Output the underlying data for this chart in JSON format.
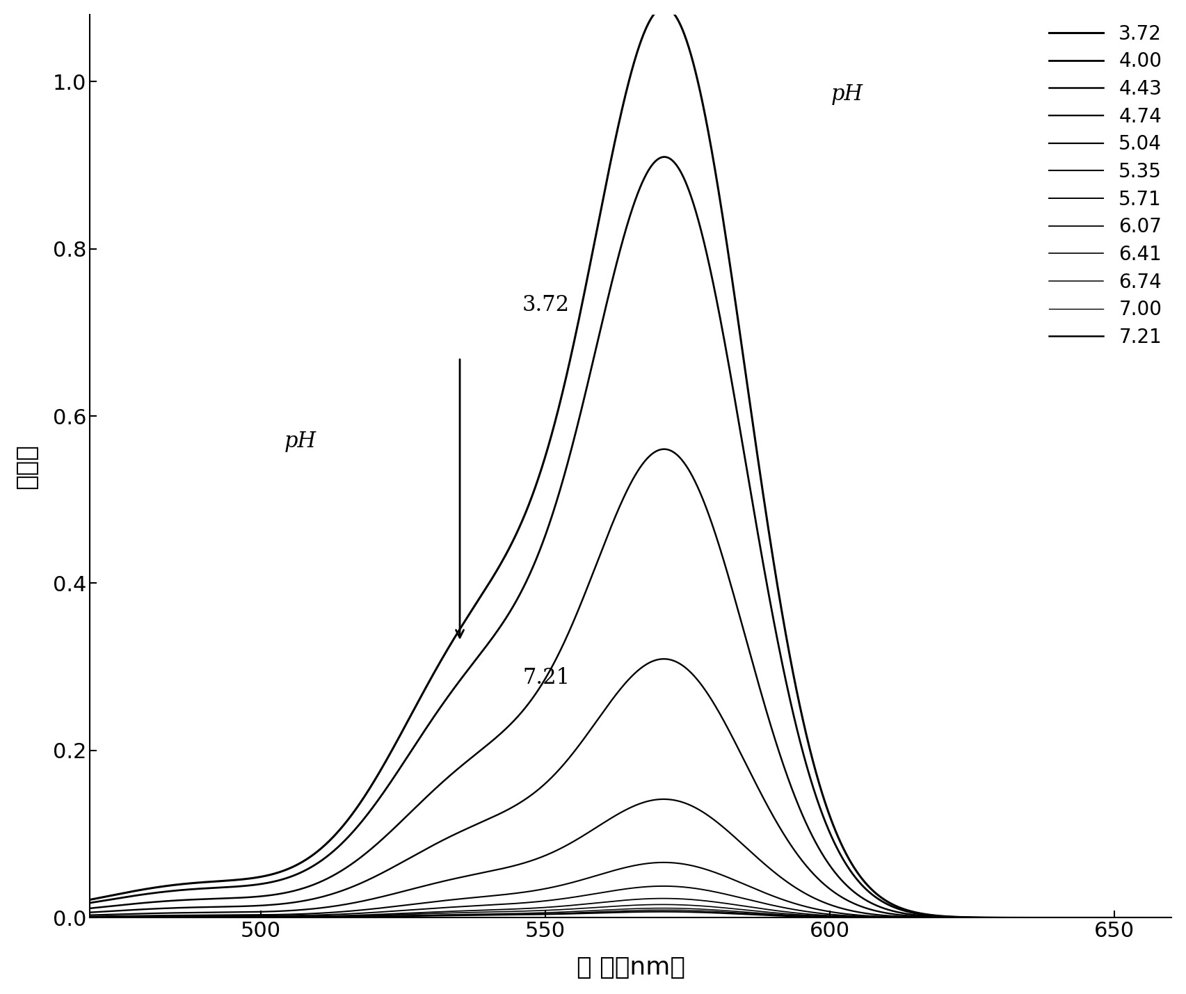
{
  "ph_values": [
    3.72,
    4.0,
    4.43,
    4.74,
    5.04,
    5.35,
    5.71,
    6.07,
    6.41,
    6.74,
    7.0,
    7.21
  ],
  "peak_heights_572": [
    1.04,
    0.87,
    0.535,
    0.295,
    0.135,
    0.063,
    0.036,
    0.022,
    0.015,
    0.011,
    0.009,
    0.007
  ],
  "peak_heights_540": [
    0.335,
    0.275,
    0.175,
    0.1,
    0.047,
    0.022,
    0.013,
    0.008,
    0.006,
    0.004,
    0.003,
    0.003
  ],
  "peak_heights_490": [
    0.04,
    0.033,
    0.021,
    0.012,
    0.006,
    0.003,
    0.002,
    0.001,
    0.001,
    0.001,
    0.001,
    0.001
  ],
  "wavelength_min": 470,
  "wavelength_max": 660,
  "xlim": [
    470,
    660
  ],
  "ylim": [
    0.0,
    1.08
  ],
  "xlabel": "波 长（nm）",
  "ylabel": "吸光度",
  "xticks": [
    500,
    550,
    600,
    650
  ],
  "yticks": [
    0.0,
    0.2,
    0.4,
    0.6,
    0.8,
    1.0
  ],
  "background_color": "#ffffff",
  "annotation_3_72": "3.72",
  "annotation_7_21": "7.21",
  "annotation_pH": "pH",
  "legend_pH_label": "pH",
  "legend_values": [
    "3.72",
    "4.00",
    "4.43",
    "4.74",
    "5.04",
    "5.35",
    "5.71",
    "6.07",
    "6.41",
    "6.74",
    "7.00",
    "7.21"
  ],
  "linewidths": [
    2.2,
    2.0,
    1.8,
    1.7,
    1.6,
    1.5,
    1.4,
    1.3,
    1.2,
    1.1,
    1.0,
    1.8
  ],
  "axis_label_fontsize": 26,
  "tick_fontsize": 22,
  "legend_fontsize": 20,
  "annotation_fontsize": 22
}
